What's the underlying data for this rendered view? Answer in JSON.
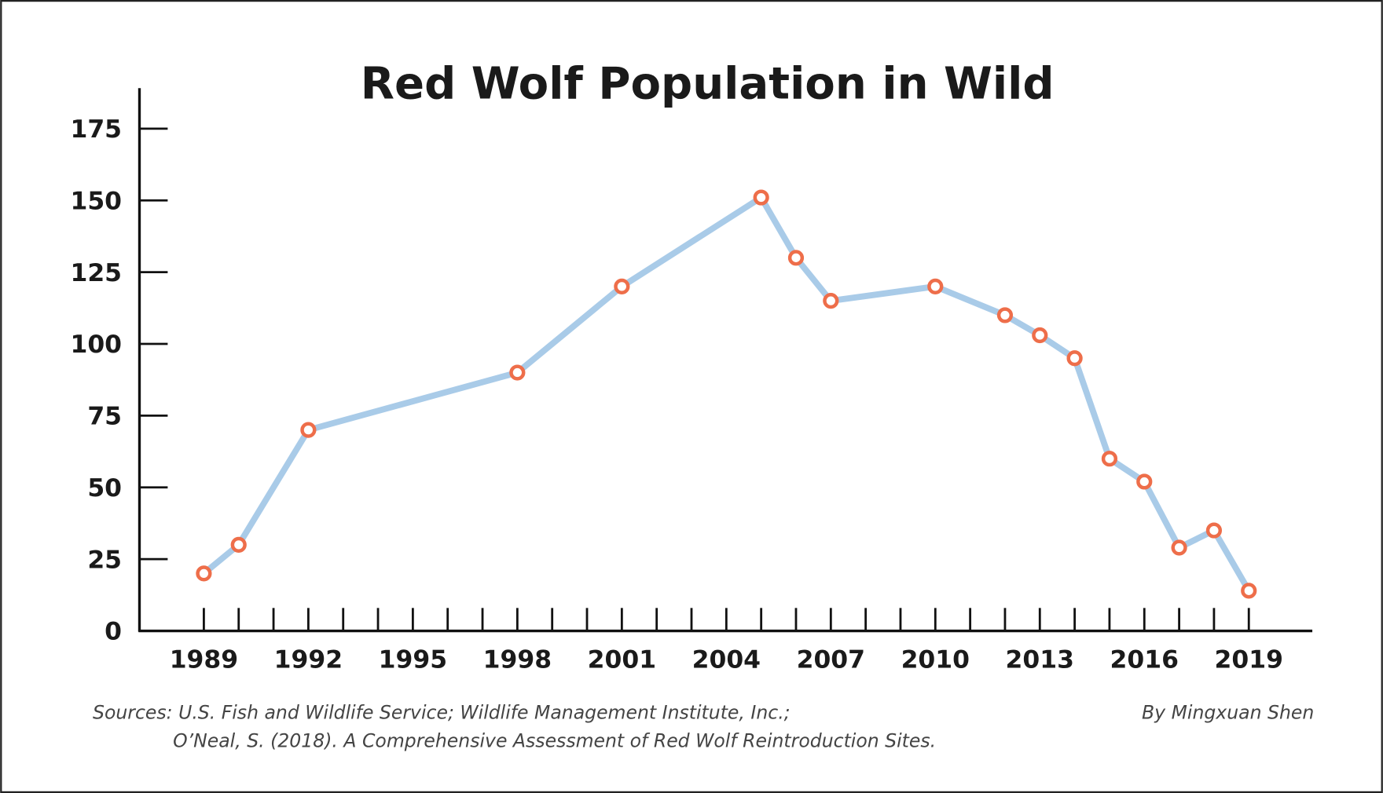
{
  "chart_data": {
    "type": "line",
    "title": "Red Wolf Population in Wild",
    "xlabel": "",
    "ylabel": "",
    "x": [
      1989,
      1990,
      1992,
      1998,
      2001,
      2005,
      2006,
      2007,
      2010,
      2012,
      2013,
      2014,
      2015,
      2016,
      2017,
      2018,
      2019
    ],
    "series": [
      {
        "values": [
          20,
          30,
          70,
          90,
          120,
          151,
          130,
          115,
          120,
          110,
          103,
          95,
          60,
          52,
          29,
          35,
          14
        ]
      }
    ],
    "xlim": [
      1987,
      2021
    ],
    "ylim": [
      0,
      175
    ],
    "x_tick_labels": [
      "1989",
      "1992",
      "1995",
      "1998",
      "2001",
      "2004",
      "2007",
      "2010",
      "2013",
      "2016",
      "2019"
    ],
    "y_tick_labels": [
      "0",
      "25",
      "50",
      "75",
      "100",
      "125",
      "150",
      "175"
    ],
    "grid": false,
    "legend": "none",
    "line_color": "#a9cbe8",
    "marker_color": "#ee6e4a"
  },
  "notes": {
    "sources_line1": "Sources: U.S. Fish and Wildlife Service; Wildlife Management Institute, Inc.;",
    "sources_line2": "O’Neal, S. (2018). A Comprehensive Assessment of Red Wolf Reintroduction Sites.",
    "byline": "By Mingxuan Shen"
  }
}
